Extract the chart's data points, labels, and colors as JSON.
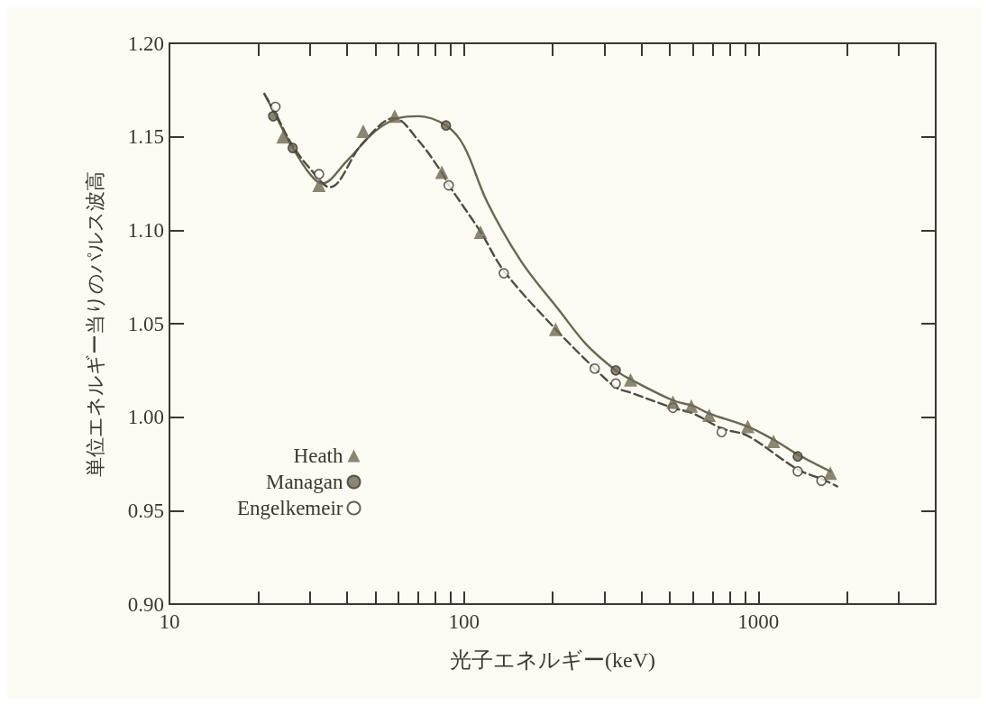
{
  "chart_data": {
    "type": "scatter",
    "xlabel": "光子エネルギー(keV)",
    "ylabel": "単位エネルギー当りのパルス波高",
    "log": "x",
    "grid": false,
    "legend": "bottom left",
    "xlim": [
      10,
      4000
    ],
    "xticks": [
      {
        "value": 10,
        "label": "10"
      },
      {
        "value": 20,
        "label": null
      },
      {
        "value": 30,
        "label": null
      },
      {
        "value": 40,
        "label": null
      },
      {
        "value": 50,
        "label": null
      },
      {
        "value": 60,
        "label": null
      },
      {
        "value": 70,
        "label": null
      },
      {
        "value": 80,
        "label": null
      },
      {
        "value": 90,
        "label": null
      },
      {
        "value": 100,
        "label": "100"
      },
      {
        "value": 200,
        "label": null
      },
      {
        "value": 300,
        "label": null
      },
      {
        "value": 400,
        "label": null
      },
      {
        "value": 500,
        "label": null
      },
      {
        "value": 600,
        "label": null
      },
      {
        "value": 700,
        "label": null
      },
      {
        "value": 800,
        "label": null
      },
      {
        "value": 900,
        "label": null
      },
      {
        "value": 1000,
        "label": "1000"
      },
      {
        "value": 2000,
        "label": null
      },
      {
        "value": 3000,
        "label": null
      }
    ],
    "ylim": [
      0.9,
      1.2
    ],
    "yticks": [
      {
        "value": 0.9,
        "label": "0.90"
      },
      {
        "value": 0.95,
        "label": "0.95"
      },
      {
        "value": 1.0,
        "label": "1.00"
      },
      {
        "value": 1.05,
        "label": "1.05"
      },
      {
        "value": 1.1,
        "label": "1.10"
      },
      {
        "value": 1.15,
        "label": "1.15"
      },
      {
        "value": 1.2,
        "label": "1.20"
      }
    ],
    "series": [
      {
        "name": "Heath",
        "marker": "triangle",
        "color": "#6e6953",
        "x": [
          24.3,
          32.2,
          45.5,
          58.2,
          84.1,
          113.8,
          204.8,
          368,
          512.6,
          591.6,
          680,
          920,
          1125,
          1754
        ],
        "values": [
          1.15,
          1.124,
          1.153,
          1.161,
          1.131,
          1.099,
          1.047,
          1.02,
          1.008,
          1.006,
          1.001,
          0.995,
          0.987,
          0.97
        ]
      },
      {
        "name": "Managan",
        "marker": "circle",
        "color": "#6e6953",
        "x": [
          22.5,
          26.2,
          86.9,
          327.8,
          1360
        ],
        "values": [
          1.161,
          1.144,
          1.156,
          1.025,
          0.979
        ]
      },
      {
        "name": "Engelkemeir",
        "marker": "circle",
        "color": "#fdfdf5",
        "x": [
          22.9,
          32.2,
          88.8,
          136.6,
          278,
          327.8,
          512.6,
          750,
          1360,
          1637
        ],
        "values": [
          1.166,
          1.13,
          1.124,
          1.077,
          1.026,
          1.018,
          1.005,
          0.992,
          0.971,
          0.966
        ]
      },
      {
        "type": "line",
        "line_style": "solid",
        "color": "#6b6650",
        "x": [
          21,
          23,
          26,
          30,
          33,
          40,
          50,
          60,
          70,
          87,
          100,
          120,
          157,
          211,
          260,
          328,
          370,
          512,
          600,
          680,
          920,
          1125,
          1360,
          1754
        ],
        "values": [
          1.173,
          1.161,
          1.145,
          1.13,
          1.125,
          1.137,
          1.153,
          1.16,
          1.161,
          1.156,
          1.145,
          1.115,
          1.083,
          1.057,
          1.039,
          1.025,
          1.02,
          1.009,
          1.006,
          1.002,
          0.995,
          0.988,
          0.98,
          0.971
        ]
      },
      {
        "type": "line",
        "line_style": "dashed",
        "color": "#4f4c40",
        "x": [
          21,
          23,
          26,
          30,
          35,
          45,
          58,
          70,
          84,
          89,
          114,
          137,
          205,
          278,
          328,
          370,
          512,
          600,
          750,
          920,
          1360,
          1637,
          1850
        ],
        "values": [
          1.173,
          1.162,
          1.146,
          1.133,
          1.123,
          1.146,
          1.16,
          1.148,
          1.131,
          1.124,
          1.099,
          1.078,
          1.047,
          1.026,
          1.016,
          1.013,
          1.005,
          1.002,
          0.994,
          0.99,
          0.972,
          0.967,
          0.963
        ]
      }
    ]
  }
}
